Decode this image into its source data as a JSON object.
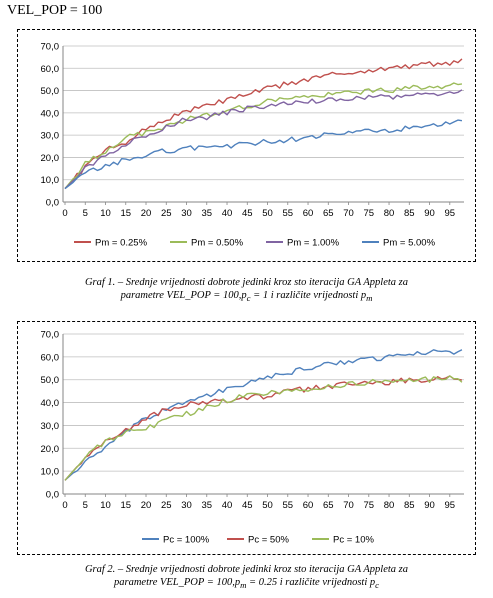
{
  "heading": "VEL_POP = 100",
  "chart_data": [
    {
      "type": "line",
      "title": "",
      "xlabel": "",
      "ylabel": "",
      "ylim": [
        0,
        70
      ],
      "yticks": [
        "0,0",
        "10,0",
        "20,0",
        "30,0",
        "40,0",
        "50,0",
        "60,0",
        "70,0"
      ],
      "xticks": [
        "0",
        "5",
        "10",
        "15",
        "20",
        "25",
        "30",
        "35",
        "40",
        "45",
        "50",
        "55",
        "60",
        "65",
        "70",
        "75",
        "80",
        "85",
        "90",
        "95"
      ],
      "grid": "horizontal",
      "legend": "bottom",
      "x_start": 0,
      "x_end": 98,
      "series": [
        {
          "name": "Pm = 0.25%",
          "color": "#c0504d",
          "anchors_x": [
            0,
            5,
            10,
            15,
            20,
            25,
            30,
            35,
            40,
            45,
            50,
            55,
            60,
            65,
            70,
            75,
            80,
            85,
            90,
            95,
            98
          ],
          "anchors_y": [
            6,
            16,
            23,
            27,
            33,
            37,
            41,
            43,
            46,
            48,
            51,
            53,
            55,
            57,
            58,
            59,
            60,
            61,
            62,
            62,
            63
          ]
        },
        {
          "name": "Pm = 0.50%",
          "color": "#9bbb59",
          "anchors_x": [
            0,
            5,
            10,
            15,
            20,
            25,
            30,
            35,
            40,
            45,
            50,
            55,
            60,
            65,
            70,
            75,
            80,
            85,
            90,
            95,
            98
          ],
          "anchors_y": [
            6,
            17,
            23,
            29,
            31,
            34,
            37,
            39,
            41,
            43,
            45,
            47,
            47,
            48,
            49,
            50,
            50,
            51,
            52,
            52,
            53
          ]
        },
        {
          "name": "Pm = 1.00%",
          "color": "#8064a2",
          "anchors_x": [
            0,
            5,
            10,
            15,
            20,
            25,
            30,
            35,
            40,
            45,
            50,
            55,
            60,
            65,
            70,
            75,
            80,
            85,
            90,
            95,
            98
          ],
          "anchors_y": [
            6,
            15,
            21,
            26,
            30,
            34,
            37,
            38,
            40,
            42,
            43,
            44,
            45,
            46,
            46,
            47,
            47,
            48,
            48,
            49,
            50
          ]
        },
        {
          "name": "Pm = 5.00%",
          "color": "#4f81bd",
          "anchors_x": [
            0,
            5,
            10,
            15,
            20,
            25,
            30,
            35,
            40,
            45,
            50,
            55,
            60,
            65,
            70,
            75,
            80,
            85,
            90,
            95,
            98
          ],
          "anchors_y": [
            6,
            13,
            16,
            19,
            21,
            23,
            24,
            25,
            25,
            26,
            27,
            28,
            29,
            30,
            31,
            32,
            32,
            33,
            34,
            35,
            36
          ]
        }
      ]
    },
    {
      "type": "line",
      "title": "",
      "xlabel": "",
      "ylabel": "",
      "ylim": [
        0,
        70
      ],
      "yticks": [
        "0,0",
        "10,0",
        "20,0",
        "30,0",
        "40,0",
        "50,0",
        "60,0",
        "70,0"
      ],
      "xticks": [
        "0",
        "5",
        "10",
        "15",
        "20",
        "25",
        "30",
        "35",
        "40",
        "45",
        "50",
        "55",
        "60",
        "65",
        "70",
        "75",
        "80",
        "85",
        "90",
        "95"
      ],
      "grid": "horizontal",
      "legend": "bottom",
      "x_start": 0,
      "x_end": 98,
      "series": [
        {
          "name": "Pc = 100%",
          "color": "#4f81bd",
          "anchors_x": [
            0,
            5,
            10,
            15,
            20,
            25,
            30,
            35,
            40,
            45,
            50,
            55,
            60,
            65,
            70,
            75,
            80,
            85,
            90,
            95,
            98
          ],
          "anchors_y": [
            6,
            14,
            20,
            27,
            33,
            37,
            41,
            43,
            46,
            48,
            51,
            53,
            55,
            57,
            58,
            59,
            60,
            61,
            62,
            62,
            63
          ]
        },
        {
          "name": "Pc = 50%",
          "color": "#c0504d",
          "anchors_x": [
            0,
            5,
            10,
            15,
            20,
            25,
            30,
            35,
            40,
            45,
            50,
            55,
            60,
            65,
            70,
            75,
            80,
            85,
            90,
            95,
            98
          ],
          "anchors_y": [
            6,
            16,
            23,
            28,
            33,
            37,
            39,
            40,
            41,
            42,
            43,
            45,
            46,
            47,
            48,
            49,
            49,
            50,
            50,
            51,
            51
          ]
        },
        {
          "name": "Pc = 10%",
          "color": "#9bbb59",
          "anchors_x": [
            0,
            5,
            10,
            15,
            20,
            25,
            30,
            35,
            40,
            45,
            50,
            55,
            60,
            65,
            70,
            75,
            80,
            85,
            90,
            95,
            98
          ],
          "anchors_y": [
            6,
            16,
            23,
            27,
            29,
            32,
            35,
            38,
            41,
            43,
            44,
            45,
            46,
            47,
            48,
            49,
            49,
            50,
            50,
            51,
            50
          ]
        }
      ]
    }
  ],
  "captions": [
    {
      "line1": "Graf 1. – Srednje vrijednosti dobrote jedinki kroz sto iteracija GA Appleta za",
      "line2": "parametre VEL_POP = 100,p<sub>c</sub> = 1 i različite vrijednosti p<sub>m</sub>"
    },
    {
      "line1": "Graf 2. – Srednje vrijednosti dobrote jedinki kroz sto iteracija GA Appleta za",
      "line2": "parametre VEL_POP = 100,p<sub>m</sub> = 0.25 i različite vrijednosti p<sub>c</sub>"
    }
  ]
}
